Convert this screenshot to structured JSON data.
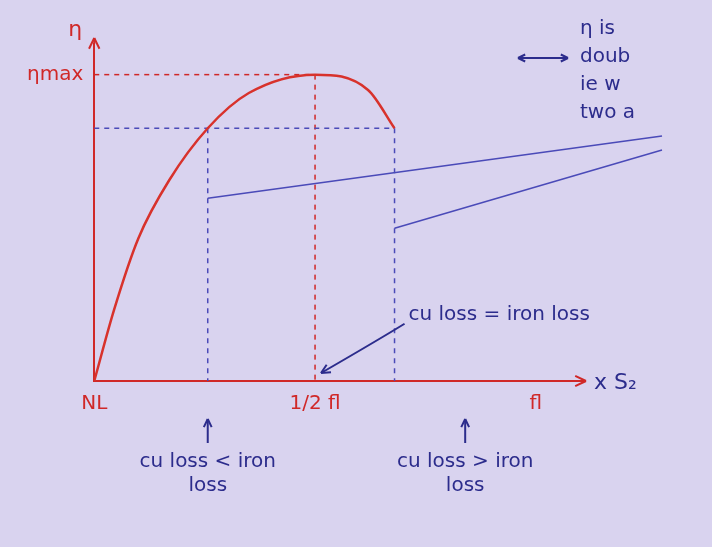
{
  "chart_data": {
    "type": "line",
    "x": [
      0,
      0.045,
      0.1,
      0.17,
      0.257,
      0.35,
      0.5,
      0.62,
      0.68
    ],
    "values": [
      0,
      0.233,
      0.466,
      0.656,
      0.825,
      0.94,
      1,
      0.95,
      0.825
    ],
    "color": "#d8322c",
    "xlim": [
      0,
      1.1
    ],
    "ylim": [
      0,
      1.1
    ],
    "xticks": [
      {
        "value": 0,
        "label": "NL"
      },
      {
        "value": 0.5,
        "label": "1/2 fl"
      },
      {
        "value": 1,
        "label": "fl"
      }
    ],
    "yticks": [
      {
        "value": 1,
        "label": "ηmax"
      }
    ],
    "y_label": "η",
    "x_label": "x S₂",
    "grid": false,
    "below_axis_notes": [
      {
        "text": "cu loss < iron loss",
        "x": 0.257
      },
      {
        "text": "cu loss > iron loss",
        "x": 0.84
      }
    ],
    "peak_note": {
      "text": "cu loss = iron loss",
      "x": 0.5
    },
    "double_valued": {
      "text": [
        "η is",
        "doub",
        "ie w",
        "two a"
      ],
      "y": 0.825,
      "x": [
        0.257,
        0.68
      ]
    }
  }
}
